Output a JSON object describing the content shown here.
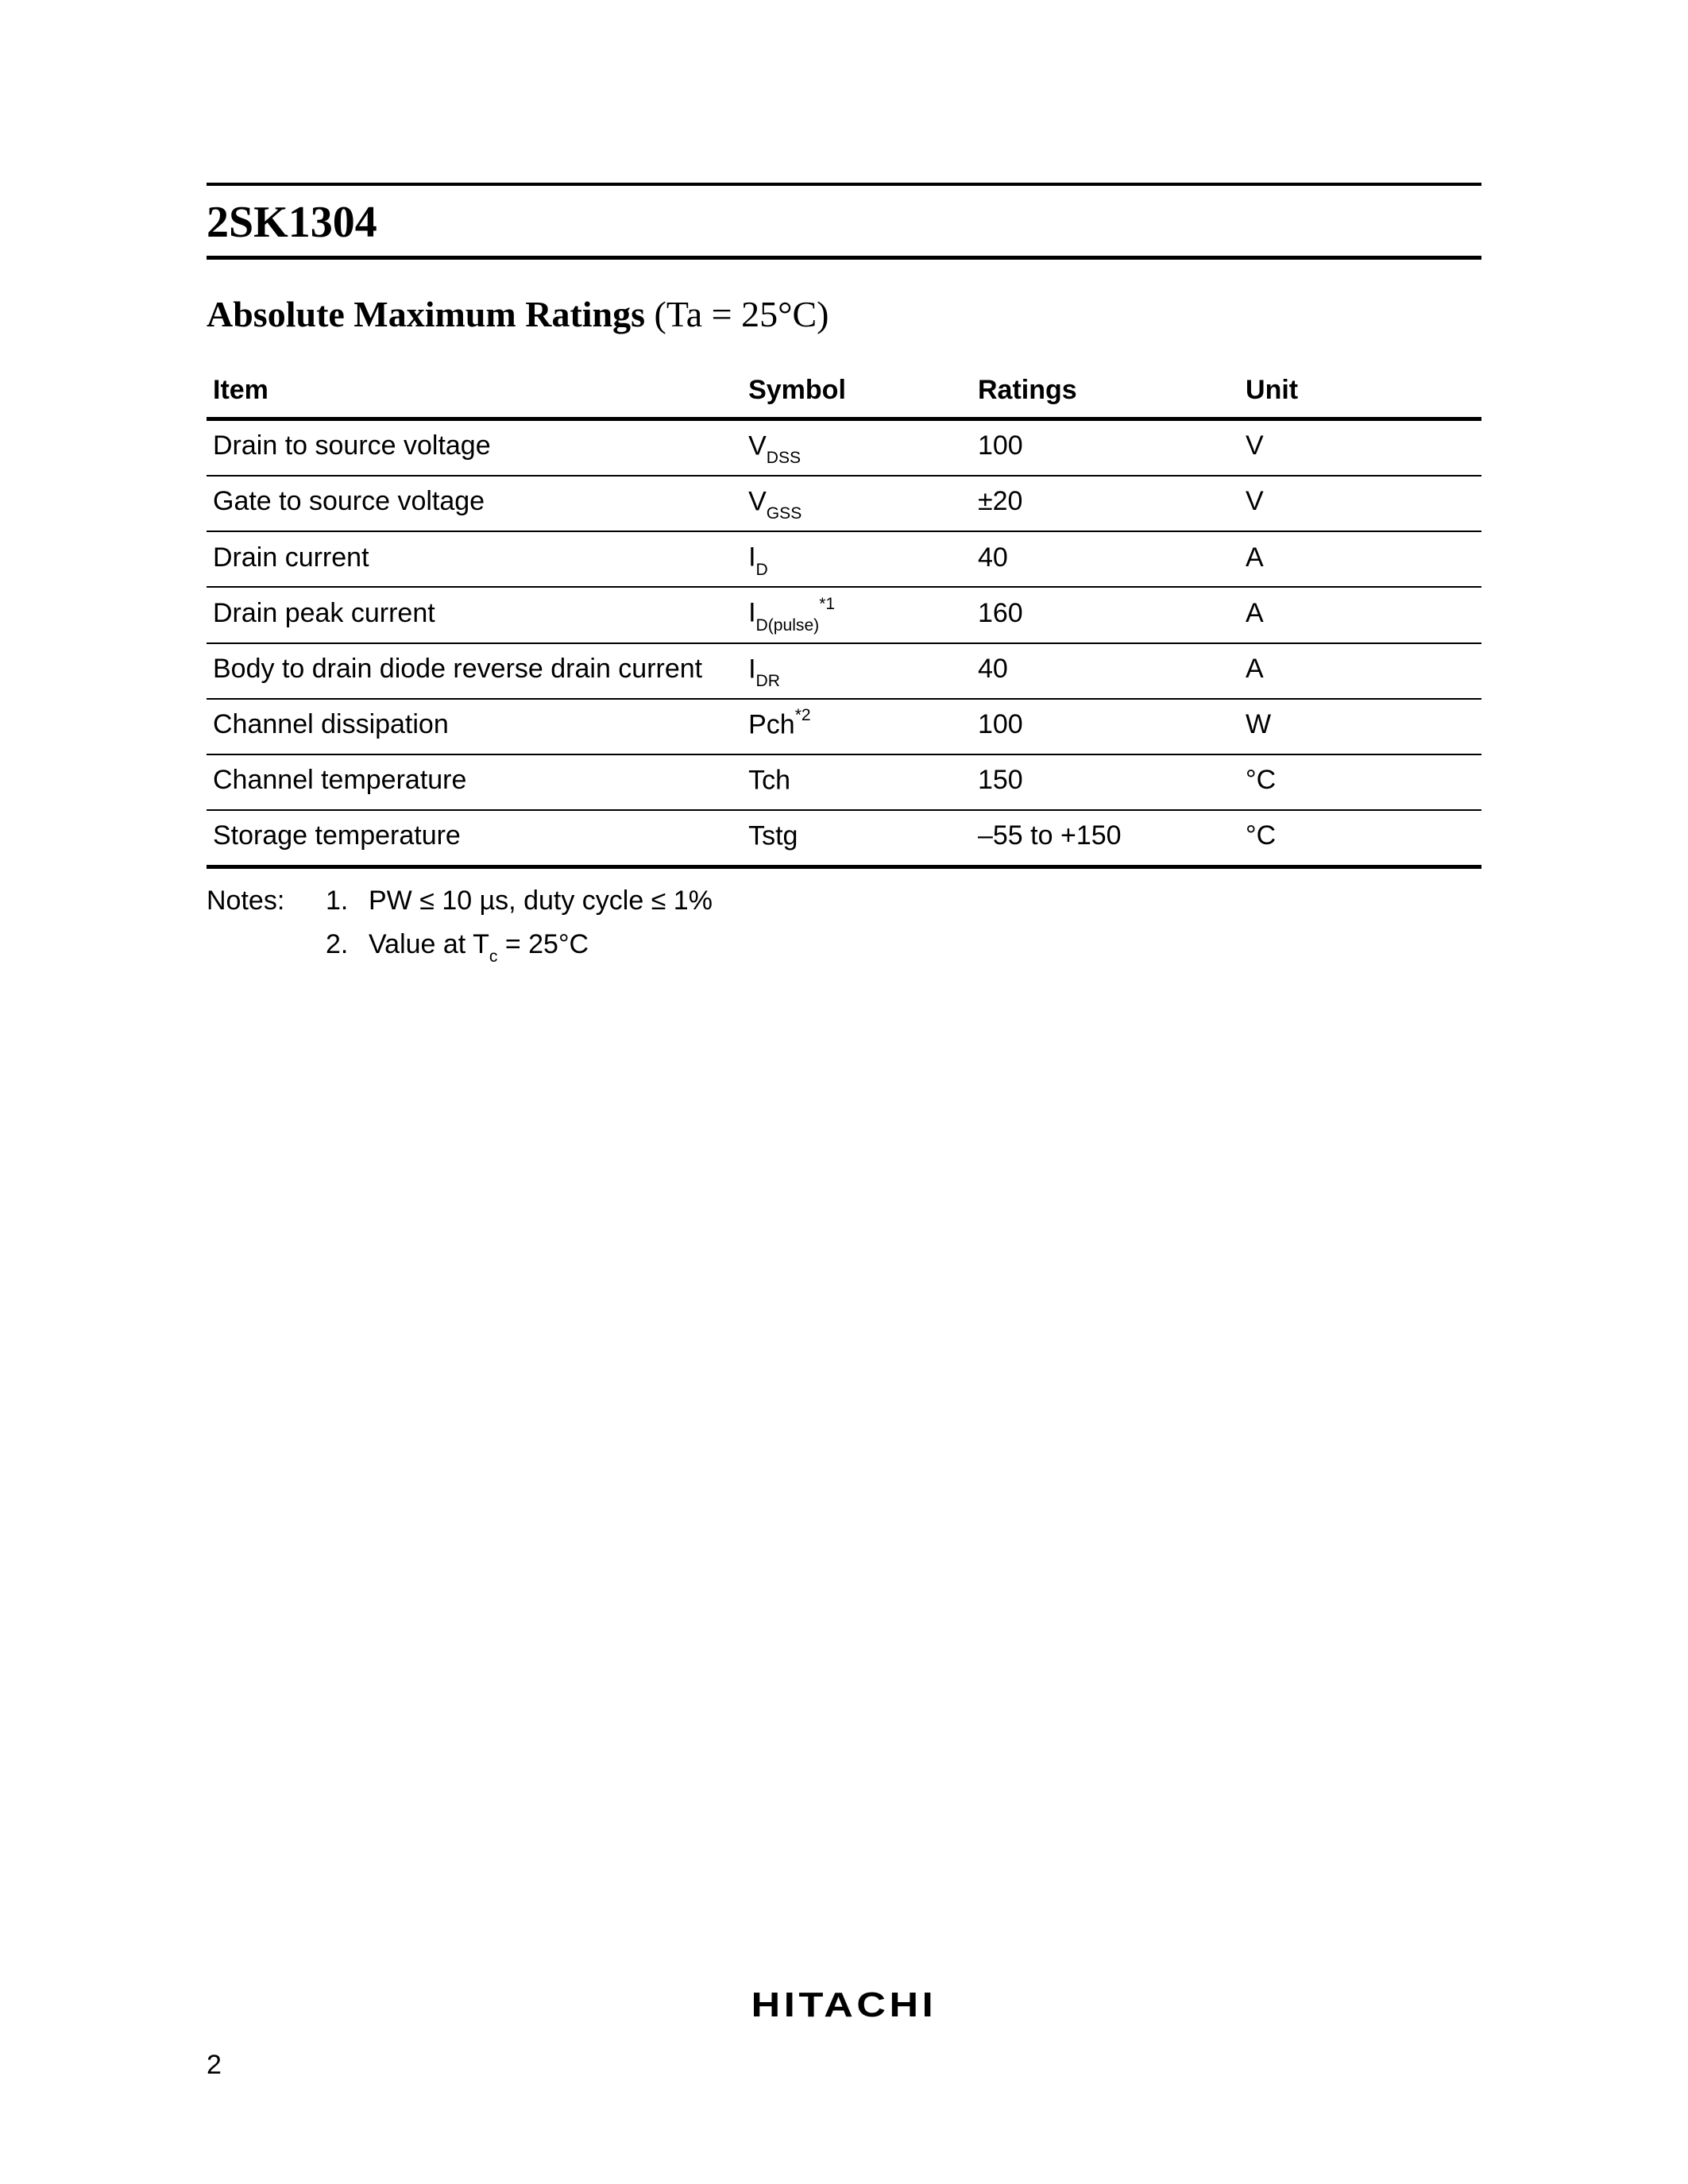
{
  "header": {
    "part_number": "2SK1304"
  },
  "section": {
    "title_bold": "Absolute Maximum Ratings",
    "title_cond": " (Ta = 25°C)"
  },
  "table": {
    "columns": {
      "item": "Item",
      "symbol": "Symbol",
      "ratings": "Ratings",
      "unit": "Unit"
    },
    "rows": [
      {
        "item": "Drain to source voltage",
        "sym_base": "V",
        "sym_sub": "DSS",
        "sym_sup": "",
        "ratings": "100",
        "unit": "V"
      },
      {
        "item": "Gate to source voltage",
        "sym_base": "V",
        "sym_sub": "GSS",
        "sym_sup": "",
        "ratings": "±20",
        "unit": "V"
      },
      {
        "item": "Drain current",
        "sym_base": "I",
        "sym_sub": "D",
        "sym_sup": "",
        "ratings": "40",
        "unit": "A"
      },
      {
        "item": "Drain peak current",
        "sym_base": "I",
        "sym_sub": "D(pulse)",
        "sym_sup": "*1",
        "ratings": "160",
        "unit": "A"
      },
      {
        "item": "Body to drain diode reverse drain current",
        "sym_base": "I",
        "sym_sub": "DR",
        "sym_sup": "",
        "ratings": "40",
        "unit": "A"
      },
      {
        "item": "Channel dissipation",
        "sym_base": "Pch",
        "sym_sub": "",
        "sym_sup": "*2",
        "ratings": "100",
        "unit": "W"
      },
      {
        "item": "Channel temperature",
        "sym_base": "Tch",
        "sym_sub": "",
        "sym_sup": "",
        "ratings": "150",
        "unit": "°C"
      },
      {
        "item": "Storage temperature",
        "sym_base": "Tstg",
        "sym_sub": "",
        "sym_sup": "",
        "ratings": "–55 to +150",
        "unit": "°C"
      }
    ]
  },
  "notes": {
    "label": "Notes:",
    "items": [
      {
        "num": "1.",
        "text_pre": "PW ≤ 10 µs, duty cycle ≤ 1%",
        "sub": "",
        "text_post": ""
      },
      {
        "num": "2.",
        "text_pre": "Value at T",
        "sub": "c",
        "text_post": " =  25°C"
      }
    ]
  },
  "footer": {
    "brand": "HITACHI",
    "page": "2"
  }
}
